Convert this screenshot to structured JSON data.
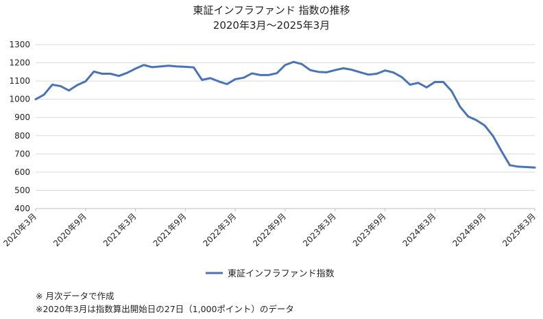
{
  "chart_data": {
    "type": "line",
    "title": "東証インフラファンド 指数の推移",
    "subtitle": "2020年3月～2025年3月",
    "xlabel": "",
    "ylabel": "",
    "ylim": [
      400,
      1300
    ],
    "yticks": [
      400,
      500,
      600,
      700,
      800,
      900,
      1000,
      1100,
      1200,
      1300
    ],
    "grid": true,
    "legend_position": "bottom",
    "series_color": "#4472C4",
    "x_tick_labels": [
      "2020年3月",
      "2020年9月",
      "2021年3月",
      "2021年9月",
      "2022年3月",
      "2022年9月",
      "2023年3月",
      "2023年9月",
      "2024年3月",
      "2024年9月",
      "2025年3月"
    ],
    "x": [
      "2020-03",
      "2020-04",
      "2020-05",
      "2020-06",
      "2020-07",
      "2020-08",
      "2020-09",
      "2020-10",
      "2020-11",
      "2020-12",
      "2021-01",
      "2021-02",
      "2021-03",
      "2021-04",
      "2021-05",
      "2021-06",
      "2021-07",
      "2021-08",
      "2021-09",
      "2021-10",
      "2021-11",
      "2021-12",
      "2022-01",
      "2022-02",
      "2022-03",
      "2022-04",
      "2022-05",
      "2022-06",
      "2022-07",
      "2022-08",
      "2022-09",
      "2022-10",
      "2022-11",
      "2022-12",
      "2023-01",
      "2023-02",
      "2023-03",
      "2023-04",
      "2023-05",
      "2023-06",
      "2023-07",
      "2023-08",
      "2023-09",
      "2023-10",
      "2023-11",
      "2023-12",
      "2024-01",
      "2024-02",
      "2024-03",
      "2024-04",
      "2024-05",
      "2024-06",
      "2024-07",
      "2024-08",
      "2024-09",
      "2024-10",
      "2024-11",
      "2024-12",
      "2025-01",
      "2025-02",
      "2025-03"
    ],
    "series": [
      {
        "name": "東証インフラファンド指数",
        "values": [
          1000,
          1025,
          1080,
          1072,
          1048,
          1078,
          1098,
          1152,
          1140,
          1140,
          1128,
          1145,
          1168,
          1188,
          1176,
          1180,
          1184,
          1180,
          1178,
          1175,
          1106,
          1116,
          1098,
          1083,
          1110,
          1118,
          1142,
          1133,
          1133,
          1143,
          1188,
          1205,
          1193,
          1160,
          1150,
          1148,
          1160,
          1170,
          1162,
          1148,
          1135,
          1140,
          1158,
          1147,
          1122,
          1080,
          1090,
          1065,
          1095,
          1095,
          1045,
          960,
          905,
          885,
          855,
          797,
          715,
          638,
          630,
          628,
          625
        ]
      }
    ]
  },
  "notes": [
    "※ 月次データで作成",
    "※2020年3月は指数算出開始日の27日（1,000ポイント）のデータ"
  ]
}
